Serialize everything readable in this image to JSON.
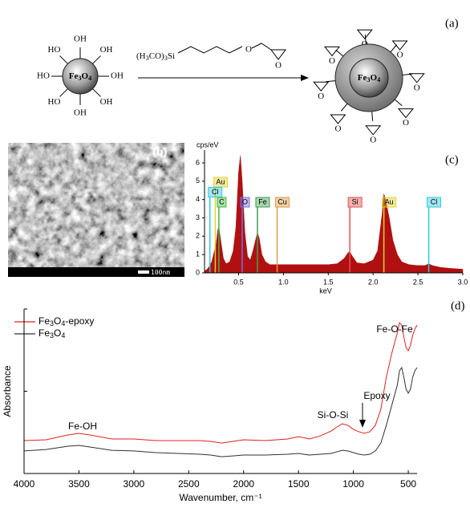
{
  "scheme": {
    "label": "(a)",
    "core_left": "Fe3O4",
    "hydroxyls": [
      "OH",
      "OH",
      "OH",
      "OH",
      "OH",
      "HO",
      "HO",
      "HO"
    ],
    "silane": "(H3CO)3Si",
    "silane_ether": "O",
    "epoxide_oxygen": "O",
    "core_right": "Fe3O4"
  },
  "sem": {
    "label": "(b)",
    "scale_bar": "100nm"
  },
  "chart_data": [
    {
      "type": "area",
      "label": "(c)",
      "x_label": "keV",
      "y_label": "cps/eV",
      "color": "#b01010",
      "x": [
        0.12,
        0.15,
        0.18,
        0.2,
        0.22,
        0.25,
        0.27,
        0.28,
        0.3,
        0.33,
        0.36,
        0.4,
        0.44,
        0.47,
        0.5,
        0.52,
        0.54,
        0.57,
        0.6,
        0.63,
        0.66,
        0.69,
        0.71,
        0.73,
        0.76,
        0.8,
        0.85,
        0.9,
        1.0,
        1.1,
        1.2,
        1.3,
        1.4,
        1.5,
        1.6,
        1.68,
        1.72,
        1.74,
        1.77,
        1.82,
        1.9,
        2.0,
        2.05,
        2.1,
        2.12,
        2.14,
        2.18,
        2.22,
        2.27,
        2.32,
        2.4,
        2.5,
        2.58,
        2.62,
        2.66,
        2.75,
        2.85,
        3.0
      ],
      "values": [
        0.1,
        0.2,
        0.4,
        0.6,
        1.0,
        1.6,
        2.4,
        2.5,
        1.8,
        0.8,
        0.5,
        0.6,
        1.2,
        2.5,
        5.5,
        6.4,
        5.0,
        2.2,
        0.9,
        0.7,
        1.2,
        1.8,
        2.2,
        1.9,
        1.0,
        0.6,
        0.45,
        0.45,
        0.45,
        0.45,
        0.45,
        0.45,
        0.45,
        0.45,
        0.5,
        0.8,
        1.1,
        1.15,
        0.9,
        0.55,
        0.5,
        0.7,
        1.2,
        3.2,
        4.3,
        4.0,
        3.0,
        1.8,
        1.0,
        0.6,
        0.45,
        0.4,
        0.4,
        0.5,
        0.4,
        0.3,
        0.25,
        0.2
      ],
      "xlim": [
        0.12,
        3.0
      ],
      "ylim": [
        0,
        6.7
      ],
      "xticks": [
        0.5,
        {
          "value": 1,
          "label": "1.0"
        },
        1.5,
        {
          "value": 2,
          "label": "2.0"
        },
        2.5,
        {
          "value": 3,
          "label": "3.0"
        }
      ],
      "yticks": [
        0,
        1,
        2,
        3,
        4,
        5,
        6
      ],
      "markers": [
        {
          "label": "Au",
          "x": 0.24,
          "color": "#e0d030"
        },
        {
          "label": "Cl",
          "x": 0.18,
          "color": "#30c8e0"
        },
        {
          "label": "C",
          "x": 0.28,
          "color": "#40b840"
        },
        {
          "label": "O",
          "x": 0.54,
          "color": "#7070f0"
        },
        {
          "label": "Fe",
          "x": 0.71,
          "color": "#40a050"
        },
        {
          "label": "Cu",
          "x": 0.93,
          "color": "#e09a40"
        },
        {
          "label": "Si",
          "x": 1.74,
          "color": "#e05050"
        },
        {
          "label": "Au",
          "x": 2.12,
          "color": "#e0d030"
        },
        {
          "label": "Cl",
          "x": 2.62,
          "color": "#30c8e0"
        }
      ]
    },
    {
      "type": "line",
      "label": "(d)",
      "x_label": "Wavenumber, cm⁻¹",
      "y_label": "Absorbance",
      "legend": "upper left",
      "x": [
        4000,
        3800,
        3600,
        3500,
        3400,
        3200,
        3000,
        2800,
        2600,
        2400,
        2300,
        2200,
        2100,
        2000,
        1800,
        1600,
        1500,
        1400,
        1300,
        1200,
        1150,
        1100,
        1050,
        1000,
        950,
        900,
        850,
        800,
        750,
        700,
        650,
        600,
        580,
        560,
        540,
        520,
        500,
        480,
        460,
        440,
        420
      ],
      "series": [
        {
          "name": "Fe3O4-epoxy",
          "color": "#e02020",
          "values": [
            0.2,
            0.205,
            0.234,
            0.244,
            0.234,
            0.21,
            0.21,
            0.2,
            0.2,
            0.2,
            0.195,
            0.185,
            0.195,
            0.205,
            0.2,
            0.21,
            0.224,
            0.21,
            0.229,
            0.259,
            0.283,
            0.302,
            0.293,
            0.268,
            0.254,
            0.244,
            0.254,
            0.293,
            0.39,
            0.585,
            0.732,
            0.854,
            0.917,
            0.902,
            0.829,
            0.766,
            0.746,
            0.78,
            0.839,
            0.878,
            0.902
          ]
        },
        {
          "name": "Fe3O4",
          "color": "#303030",
          "values": [
            0.137,
            0.146,
            0.166,
            0.171,
            0.161,
            0.141,
            0.137,
            0.127,
            0.122,
            0.117,
            0.112,
            0.102,
            0.107,
            0.112,
            0.112,
            0.117,
            0.122,
            0.112,
            0.117,
            0.122,
            0.132,
            0.141,
            0.137,
            0.127,
            0.117,
            0.112,
            0.117,
            0.137,
            0.185,
            0.293,
            0.415,
            0.537,
            0.624,
            0.644,
            0.585,
            0.512,
            0.488,
            0.512,
            0.585,
            0.624,
            0.644
          ]
        }
      ],
      "xlim": [
        4000,
        420
      ],
      "ylim": [
        0,
        1
      ],
      "xticks": [
        4000,
        3500,
        3000,
        2500,
        2000,
        1500,
        1000,
        500
      ],
      "annotations": [
        "Fe-OH",
        "Si-O-Si",
        "Epoxy",
        "Fe-O-Fe"
      ]
    }
  ]
}
